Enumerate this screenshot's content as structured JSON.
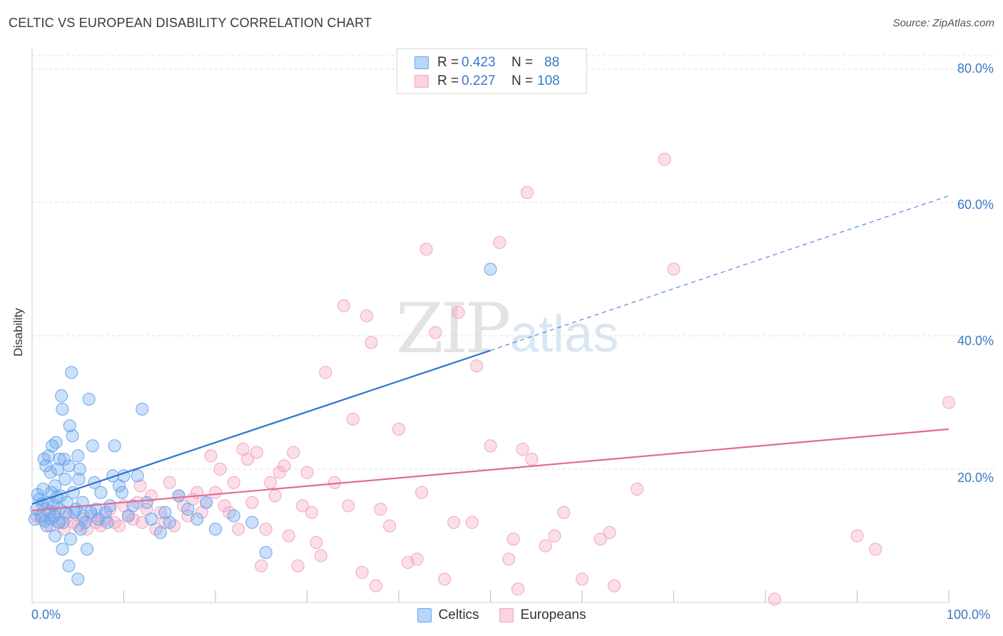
{
  "header": {
    "title": "CELTIC VS EUROPEAN DISABILITY CORRELATION CHART",
    "source": "Source: ZipAtlas.com"
  },
  "watermark": {
    "zip": "ZIP",
    "atlas": "atlas"
  },
  "colors": {
    "celtics": "#6aa6ef",
    "celtics_line": "#2f74d0",
    "europeans": "#f4a3bd",
    "europeans_line": "#e06b95",
    "tick_text": "#3a78c9"
  },
  "legend": {
    "rows": [
      {
        "r_label": "R =",
        "r_value": "0.423",
        "n_label": "N =",
        "n_value": "88"
      },
      {
        "r_label": "R =",
        "r_value": "0.227",
        "n_label": "N =",
        "n_value": "108"
      }
    ]
  },
  "bottom_legend": {
    "celtics": "Celtics",
    "europeans": "Europeans"
  },
  "chart_data": {
    "type": "scatter",
    "xlabel": "",
    "ylabel": "Disability",
    "xlim": [
      0,
      100
    ],
    "ylim": [
      0,
      80
    ],
    "x_tick_labels": [
      "0.0%",
      "100.0%"
    ],
    "y_ticks": [
      20,
      40,
      60,
      80
    ],
    "y_tick_labels": [
      "20.0%",
      "40.0%",
      "60.0%",
      "80.0%"
    ],
    "grid": "horizontal dashed",
    "legend_position": "top-center",
    "series": [
      {
        "name": "Celtics",
        "r": 0.423,
        "n": 88,
        "trend": {
          "x0": 0,
          "y0": 14.8,
          "x1": 50,
          "y1": 37.8,
          "dashed_to_x": 100,
          "dashed_to_y": 61.0
        },
        "points": [
          [
            0.3,
            12.5
          ],
          [
            0.5,
            14.0
          ],
          [
            0.8,
            15.5
          ],
          [
            1.0,
            13.0
          ],
          [
            1.2,
            17.0
          ],
          [
            1.3,
            21.5
          ],
          [
            1.5,
            20.5
          ],
          [
            1.6,
            11.5
          ],
          [
            1.7,
            15.0
          ],
          [
            1.8,
            22.0
          ],
          [
            2.0,
            19.5
          ],
          [
            2.0,
            12.5
          ],
          [
            2.1,
            16.5
          ],
          [
            2.2,
            23.5
          ],
          [
            2.3,
            14.5
          ],
          [
            2.4,
            13.0
          ],
          [
            2.5,
            17.5
          ],
          [
            2.5,
            10.0
          ],
          [
            2.6,
            24.0
          ],
          [
            2.8,
            20.0
          ],
          [
            2.9,
            12.0
          ],
          [
            3.0,
            21.5
          ],
          [
            3.0,
            14.0
          ],
          [
            3.1,
            16.0
          ],
          [
            3.2,
            31.0
          ],
          [
            3.3,
            29.0
          ],
          [
            3.3,
            8.0
          ],
          [
            3.4,
            12.0
          ],
          [
            3.5,
            21.5
          ],
          [
            3.6,
            18.5
          ],
          [
            3.7,
            13.5
          ],
          [
            3.8,
            15.0
          ],
          [
            4.0,
            20.5
          ],
          [
            4.0,
            5.5
          ],
          [
            4.1,
            26.5
          ],
          [
            4.2,
            9.5
          ],
          [
            4.3,
            34.5
          ],
          [
            4.4,
            25.0
          ],
          [
            4.5,
            16.5
          ],
          [
            4.6,
            13.5
          ],
          [
            4.8,
            14.0
          ],
          [
            5.0,
            22.0
          ],
          [
            5.0,
            3.5
          ],
          [
            5.1,
            18.5
          ],
          [
            5.2,
            20.0
          ],
          [
            5.3,
            11.0
          ],
          [
            5.5,
            15.0
          ],
          [
            5.6,
            13.0
          ],
          [
            5.8,
            12.0
          ],
          [
            6.0,
            8.0
          ],
          [
            6.2,
            30.5
          ],
          [
            6.4,
            13.5
          ],
          [
            6.6,
            23.5
          ],
          [
            6.8,
            18.0
          ],
          [
            7.0,
            14.0
          ],
          [
            7.2,
            12.5
          ],
          [
            7.5,
            16.5
          ],
          [
            8.0,
            13.5
          ],
          [
            8.2,
            12.0
          ],
          [
            8.5,
            14.5
          ],
          [
            8.8,
            19.0
          ],
          [
            9.0,
            23.5
          ],
          [
            9.5,
            17.5
          ],
          [
            9.8,
            16.5
          ],
          [
            10.0,
            19.0
          ],
          [
            10.5,
            13.0
          ],
          [
            11.0,
            14.5
          ],
          [
            11.5,
            19.0
          ],
          [
            12.0,
            29.0
          ],
          [
            12.5,
            15.0
          ],
          [
            13.0,
            12.5
          ],
          [
            14.0,
            10.5
          ],
          [
            14.5,
            13.5
          ],
          [
            15.0,
            12.0
          ],
          [
            16.0,
            16.0
          ],
          [
            17.0,
            14.0
          ],
          [
            18.0,
            12.5
          ],
          [
            19.0,
            15.0
          ],
          [
            20.0,
            11.0
          ],
          [
            22.0,
            13.0
          ],
          [
            24.0,
            12.0
          ],
          [
            25.5,
            7.5
          ],
          [
            1.1,
            14.8
          ],
          [
            1.9,
            13.6
          ],
          [
            2.7,
            15.8
          ],
          [
            0.6,
            16.2
          ],
          [
            1.4,
            12.2
          ],
          [
            50.0,
            50.0
          ]
        ]
      },
      {
        "name": "Europeans",
        "r": 0.227,
        "n": 108,
        "trend": {
          "x0": 0,
          "y0": 13.8,
          "x1": 100,
          "y1": 26.0
        },
        "points": [
          [
            0.5,
            13.0
          ],
          [
            1.0,
            12.5
          ],
          [
            1.5,
            14.0
          ],
          [
            2.0,
            11.5
          ],
          [
            2.5,
            13.5
          ],
          [
            3.0,
            12.0
          ],
          [
            3.5,
            11.0
          ],
          [
            4.0,
            13.0
          ],
          [
            4.5,
            12.0
          ],
          [
            5.0,
            11.5
          ],
          [
            5.5,
            12.5
          ],
          [
            6.0,
            11.0
          ],
          [
            6.5,
            13.0
          ],
          [
            7.0,
            12.0
          ],
          [
            7.5,
            11.5
          ],
          [
            8.0,
            12.5
          ],
          [
            8.5,
            14.0
          ],
          [
            9.0,
            12.0
          ],
          [
            9.5,
            11.5
          ],
          [
            10.0,
            14.5
          ],
          [
            10.5,
            13.0
          ],
          [
            11.0,
            12.5
          ],
          [
            11.5,
            15.0
          ],
          [
            12.0,
            12.0
          ],
          [
            12.5,
            14.0
          ],
          [
            13.0,
            16.0
          ],
          [
            13.5,
            11.0
          ],
          [
            14.0,
            13.5
          ],
          [
            14.5,
            12.0
          ],
          [
            15.0,
            18.0
          ],
          [
            15.5,
            11.5
          ],
          [
            16.0,
            16.0
          ],
          [
            16.5,
            14.5
          ],
          [
            17.0,
            13.0
          ],
          [
            17.5,
            15.5
          ],
          [
            18.0,
            16.5
          ],
          [
            18.5,
            13.5
          ],
          [
            19.0,
            15.0
          ],
          [
            19.5,
            22.0
          ],
          [
            20.0,
            16.5
          ],
          [
            20.5,
            20.0
          ],
          [
            21.0,
            14.5
          ],
          [
            21.5,
            13.5
          ],
          [
            22.0,
            18.0
          ],
          [
            22.5,
            11.0
          ],
          [
            23.0,
            23.0
          ],
          [
            23.5,
            21.5
          ],
          [
            24.0,
            15.0
          ],
          [
            24.5,
            22.5
          ],
          [
            25.0,
            5.5
          ],
          [
            25.5,
            11.0
          ],
          [
            26.0,
            18.0
          ],
          [
            26.5,
            16.0
          ],
          [
            27.0,
            19.5
          ],
          [
            27.5,
            20.5
          ],
          [
            28.0,
            10.0
          ],
          [
            28.5,
            22.5
          ],
          [
            29.0,
            5.5
          ],
          [
            29.5,
            14.5
          ],
          [
            30.0,
            19.5
          ],
          [
            30.5,
            13.5
          ],
          [
            31.0,
            9.0
          ],
          [
            31.5,
            7.0
          ],
          [
            32.0,
            34.5
          ],
          [
            33.0,
            18.0
          ],
          [
            34.0,
            44.5
          ],
          [
            34.5,
            14.5
          ],
          [
            35.0,
            27.5
          ],
          [
            36.0,
            4.5
          ],
          [
            36.5,
            43.0
          ],
          [
            37.0,
            39.0
          ],
          [
            37.5,
            2.5
          ],
          [
            38.0,
            14.0
          ],
          [
            39.0,
            11.5
          ],
          [
            40.0,
            26.0
          ],
          [
            41.0,
            6.0
          ],
          [
            42.0,
            6.5
          ],
          [
            42.5,
            16.5
          ],
          [
            43.0,
            53.0
          ],
          [
            44.0,
            40.5
          ],
          [
            45.0,
            3.5
          ],
          [
            46.0,
            12.0
          ],
          [
            46.5,
            43.5
          ],
          [
            48.0,
            12.0
          ],
          [
            48.5,
            35.5
          ],
          [
            50.0,
            23.5
          ],
          [
            51.0,
            54.0
          ],
          [
            52.0,
            6.5
          ],
          [
            52.5,
            9.5
          ],
          [
            53.0,
            2.0
          ],
          [
            53.5,
            23.0
          ],
          [
            54.0,
            61.5
          ],
          [
            54.5,
            21.5
          ],
          [
            56.0,
            8.5
          ],
          [
            57.0,
            10.0
          ],
          [
            58.0,
            13.5
          ],
          [
            60.0,
            3.5
          ],
          [
            62.0,
            9.5
          ],
          [
            63.0,
            10.5
          ],
          [
            63.5,
            2.5
          ],
          [
            66.0,
            17.0
          ],
          [
            69.0,
            66.5
          ],
          [
            70.0,
            50.0
          ],
          [
            81.0,
            0.5
          ],
          [
            90.0,
            10.0
          ],
          [
            92.0,
            8.0
          ],
          [
            100.0,
            30.0
          ],
          [
            11.8,
            17.5
          ]
        ]
      }
    ]
  }
}
